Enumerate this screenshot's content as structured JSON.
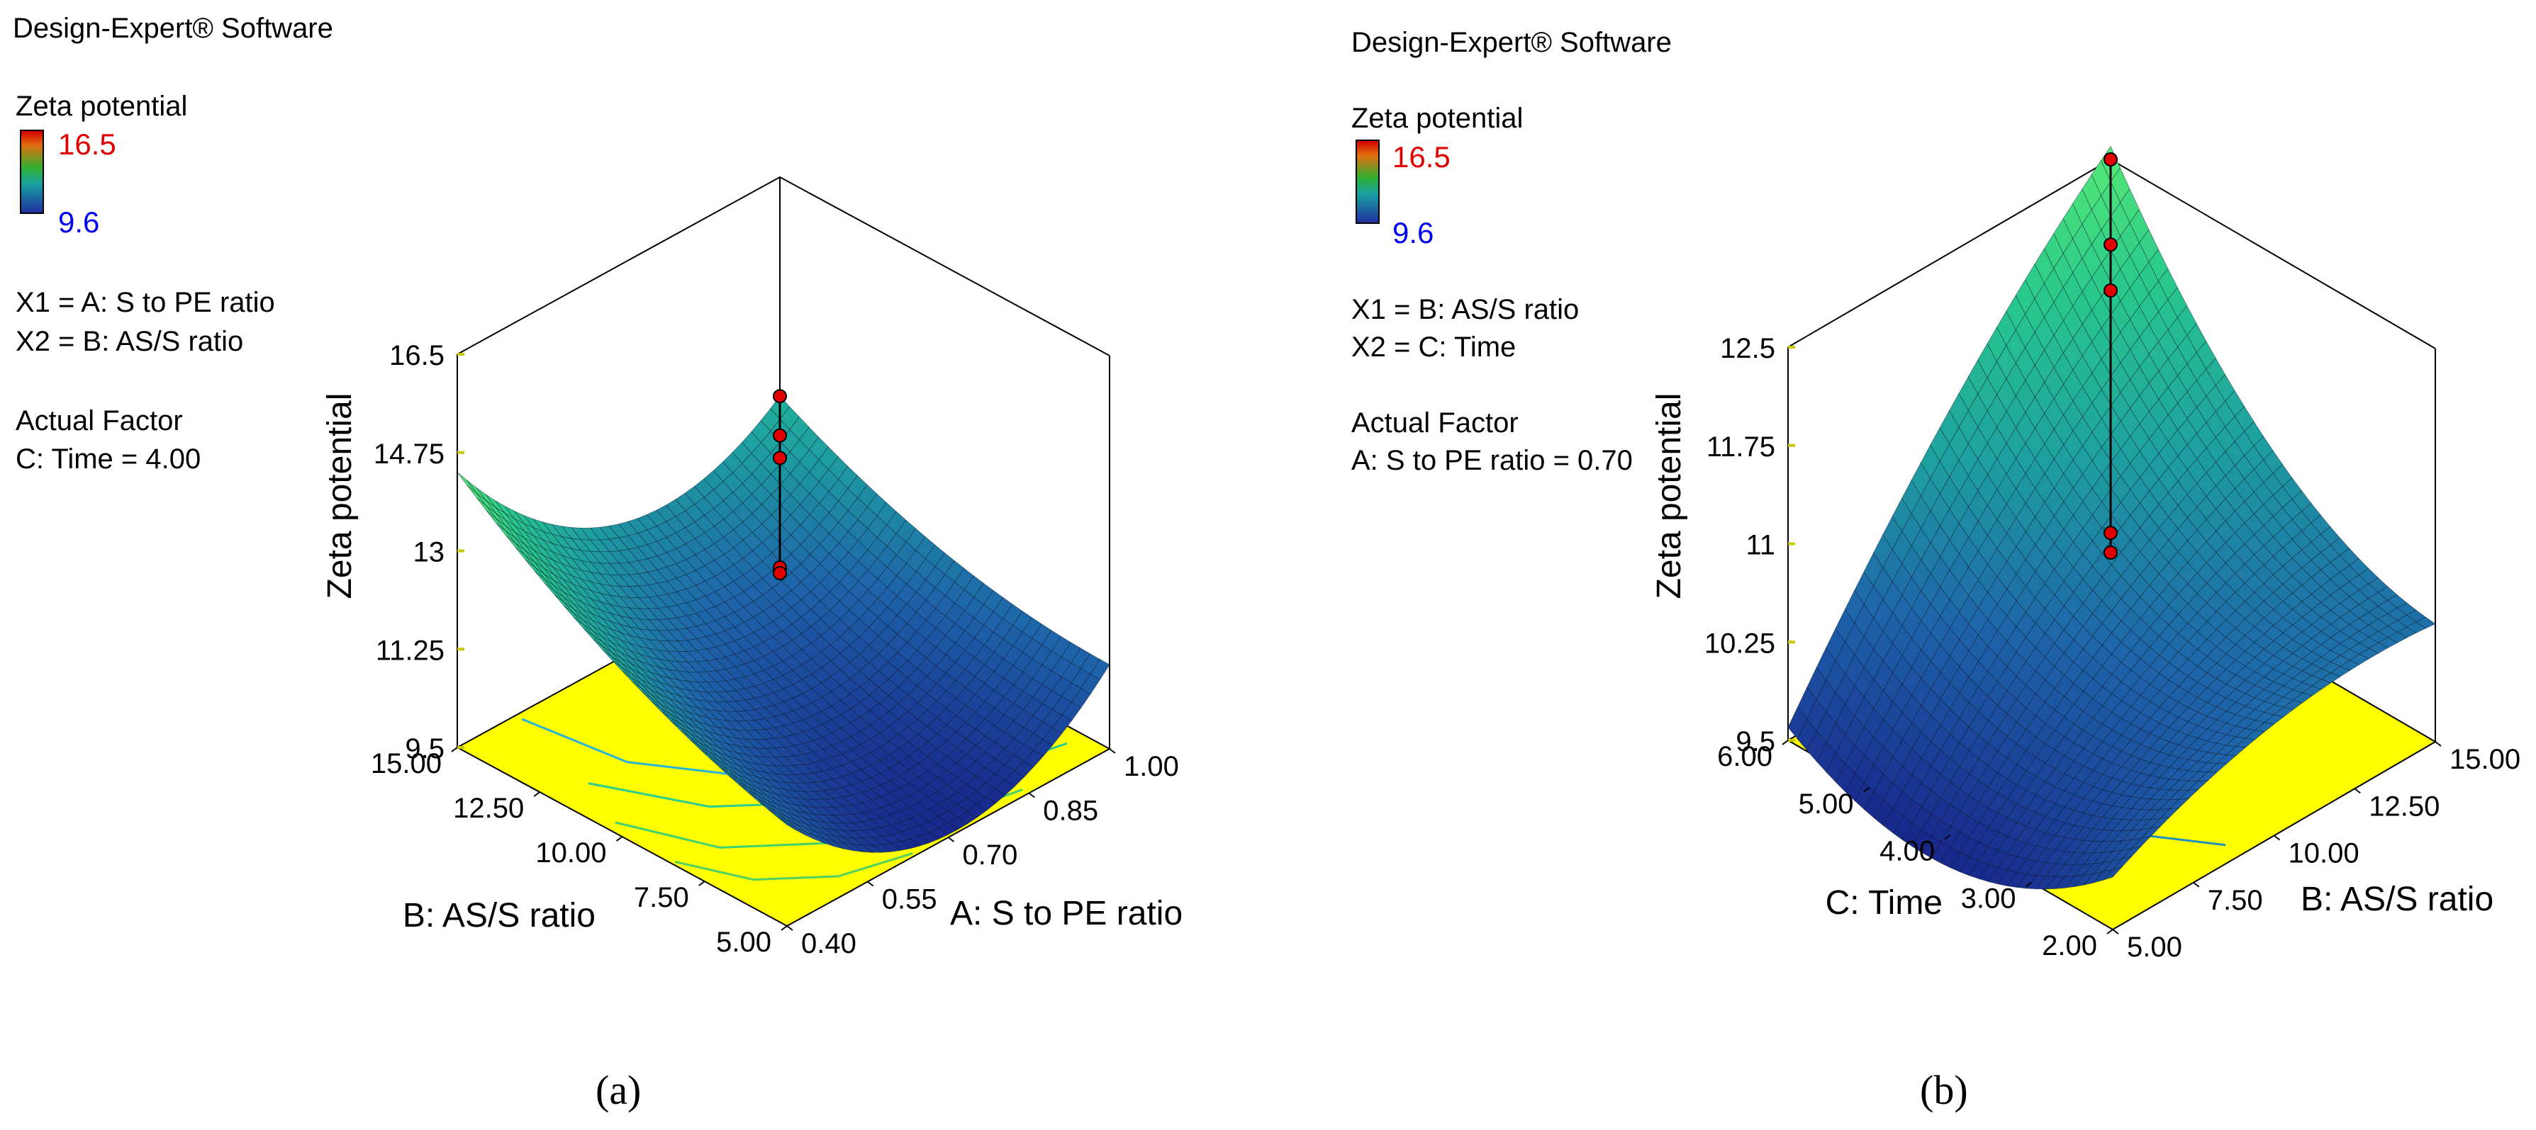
{
  "chart_data": [
    {
      "type": "surface3d",
      "caption": "(a)",
      "software_label": "Design-Expert® Software",
      "response_name": "Zeta potential",
      "legend": {
        "high": "16.5",
        "low": "9.6"
      },
      "factor_lines": [
        "X1 = A: S to PE ratio",
        "X2 = B: AS/S ratio"
      ],
      "actual_factor_title": "Actual Factor",
      "actual_factor_value": "C: Time = 4.00",
      "zlabel": "Zeta potential",
      "xlabel": "A: S to PE ratio",
      "ylabel": "B: AS/S ratio",
      "z_ticks": [
        "16.5",
        "14.75",
        "13",
        "11.25",
        "9.5"
      ],
      "z_tick_values": [
        16.5,
        14.75,
        13,
        11.25,
        9.5
      ],
      "zlim": [
        9.5,
        16.5
      ],
      "x_ticks": [
        "0.40",
        "0.55",
        "0.70",
        "0.85",
        "1.00"
      ],
      "xlim": [
        0.4,
        1.0
      ],
      "y_ticks": [
        "5.00",
        "7.50",
        "10.00",
        "12.50",
        "15.00"
      ],
      "ylim": [
        5.0,
        15.0
      ],
      "surface_corners": {
        "x_low_y_low": 11.3,
        "x_high_y_low": 11.0,
        "x_high_y_high": 12.6,
        "x_low_y_high": 14.4
      },
      "surface_minimum": 9.8,
      "design_points_z": [
        12.6,
        11.9,
        11.5,
        9.55,
        9.45
      ]
    },
    {
      "type": "surface3d",
      "caption": "(b)",
      "software_label": "Design-Expert® Software",
      "response_name": "Zeta potential",
      "legend": {
        "high": "16.5",
        "low": "9.6"
      },
      "factor_lines": [
        "X1 = B: AS/S ratio",
        "X2 = C: Time"
      ],
      "actual_factor_title": "Actual Factor",
      "actual_factor_value": "A: S to PE ratio = 0.70",
      "zlabel": "Zeta potential",
      "xlabel": "B: AS/S ratio",
      "ylabel": "C: Time",
      "z_ticks": [
        "12.5",
        "11.75",
        "11",
        "10.25",
        "9.5"
      ],
      "z_tick_values": [
        12.5,
        11.75,
        11,
        10.25,
        9.5
      ],
      "zlim": [
        9.5,
        12.5
      ],
      "x_ticks": [
        "5.00",
        "7.50",
        "10.00",
        "12.50",
        "15.00"
      ],
      "xlim": [
        5.0,
        15.0
      ],
      "y_ticks": [
        "2.00",
        "3.00",
        "4.00",
        "5.00",
        "6.00"
      ],
      "ylim": [
        2.0,
        6.0
      ],
      "surface_corners": {
        "x_low_y_low": 9.9,
        "x_high_y_low": 10.4,
        "x_high_y_high": 12.6,
        "x_low_y_high": 9.6
      },
      "surface_minimum": 9.9,
      "design_points_z": [
        12.5,
        11.85,
        11.5,
        9.65,
        9.5
      ]
    }
  ]
}
